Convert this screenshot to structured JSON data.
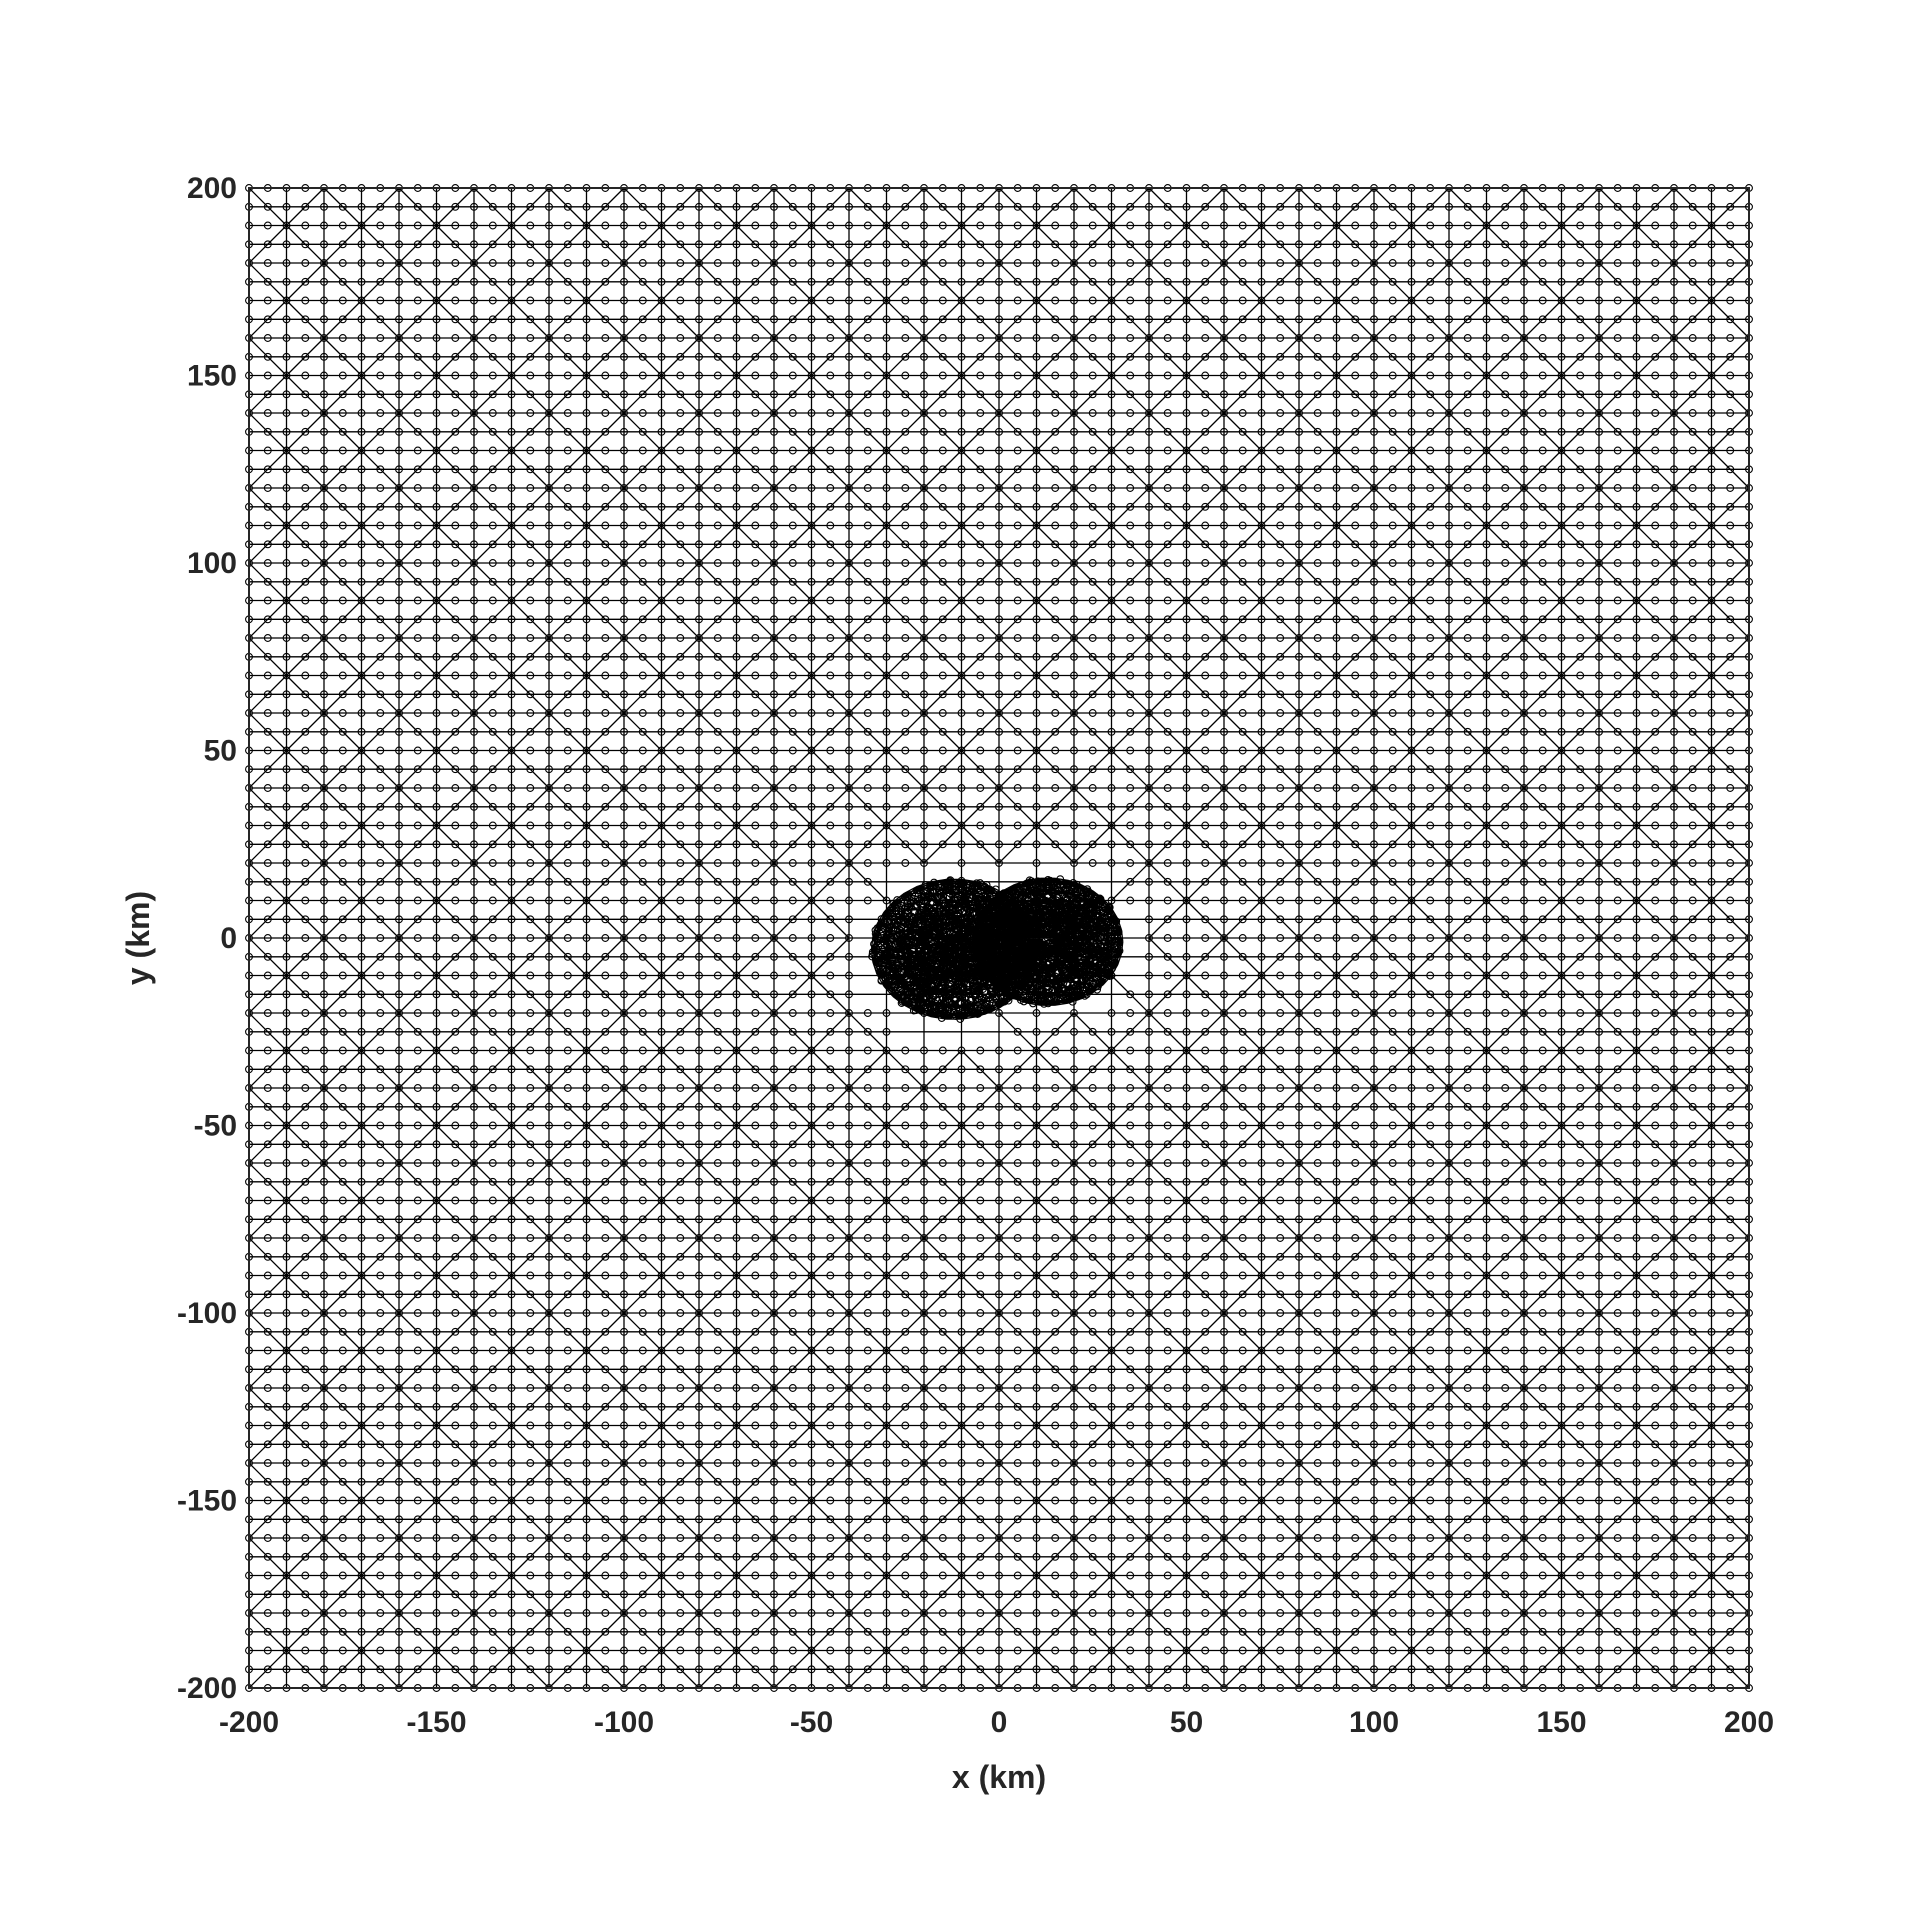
{
  "chart_data": {
    "type": "mesh",
    "title": "",
    "xlabel": "x (km)",
    "ylabel": "y (km)",
    "xlim": [
      -200,
      200
    ],
    "ylim": [
      -200,
      200
    ],
    "xticks": [
      -200,
      -150,
      -100,
      -50,
      0,
      50,
      100,
      150,
      200
    ],
    "yticks": [
      -200,
      -150,
      -100,
      -50,
      0,
      50,
      100,
      150,
      200
    ],
    "xtick_labels": [
      "-200",
      "-150",
      "-100",
      "-50",
      "0",
      "50",
      "100",
      "150",
      "200"
    ],
    "ytick_labels": [
      "-200",
      "-150",
      "-100",
      "-50",
      "0",
      "50",
      "100",
      "150",
      "200"
    ],
    "grid": false,
    "box": true,
    "mesh": {
      "node_spacing_km": 10,
      "node_marker": "circle",
      "refinement_clusters": [
        {
          "center": [
            -12,
            -3
          ],
          "radius_km": 22
        },
        {
          "center": [
            13,
            -1
          ],
          "radius_km": 20
        }
      ]
    },
    "color": "#000000"
  }
}
